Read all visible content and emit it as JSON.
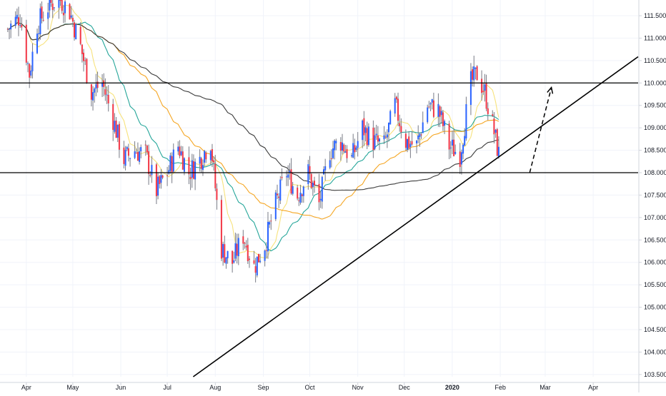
{
  "chart_data": {
    "type": "candlestick",
    "title": "",
    "xlabel": "",
    "ylabel": "",
    "x_range": [
      "2019-03-15",
      "2020-04-30"
    ],
    "ylim": [
      103.45,
      111.85
    ],
    "y_ticks": [
      "103.500",
      "104.000",
      "104.500",
      "105.000",
      "105.500",
      "106.000",
      "106.500",
      "107.000",
      "107.500",
      "108.000",
      "108.500",
      "109.000",
      "109.500",
      "110.000",
      "110.500",
      "111.000",
      "111.500"
    ],
    "x_ticks": [
      {
        "label": "Apr",
        "date": "2019-04-01",
        "bold": false
      },
      {
        "label": "May",
        "date": "2019-05-01",
        "bold": false
      },
      {
        "label": "Jun",
        "date": "2019-06-01",
        "bold": false
      },
      {
        "label": "Jul",
        "date": "2019-07-01",
        "bold": false
      },
      {
        "label": "Aug",
        "date": "2019-08-01",
        "bold": false
      },
      {
        "label": "Sep",
        "date": "2019-09-01",
        "bold": false
      },
      {
        "label": "Oct",
        "date": "2019-10-01",
        "bold": false
      },
      {
        "label": "Nov",
        "date": "2019-11-01",
        "bold": false
      },
      {
        "label": "Dec",
        "date": "2019-12-01",
        "bold": false
      },
      {
        "label": "2020",
        "date": "2020-01-01",
        "bold": true
      },
      {
        "label": "Feb",
        "date": "2020-02-01",
        "bold": false
      },
      {
        "label": "Mar",
        "date": "2020-03-01",
        "bold": false
      },
      {
        "label": "Apr",
        "date": "2020-04-01",
        "bold": false
      }
    ],
    "colors": {
      "up": "#2962ff",
      "down": "#f23645",
      "wick": "#787b86",
      "sma_fast": "#f7e27c",
      "sma_mid": "#26a69a",
      "sma_slow": "#f5a623",
      "sma_long": "#3c3c3c",
      "drawing": "#000000",
      "grid": "#f0f3fa",
      "axis_text": "#131722"
    },
    "anchors": [
      [
        "2019-03-20",
        111.2
      ],
      [
        "2019-03-28",
        111.5
      ],
      [
        "2019-04-03",
        110.2
      ],
      [
        "2019-04-08",
        111.3
      ],
      [
        "2019-04-15",
        111.7
      ],
      [
        "2019-04-22",
        111.9
      ],
      [
        "2019-04-29",
        111.6
      ],
      [
        "2019-05-06",
        110.8
      ],
      [
        "2019-05-13",
        109.8
      ],
      [
        "2019-05-20",
        110.0
      ],
      [
        "2019-05-27",
        109.2
      ],
      [
        "2019-06-03",
        108.3
      ],
      [
        "2019-06-10",
        108.5
      ],
      [
        "2019-06-17",
        108.4
      ],
      [
        "2019-06-24",
        107.6
      ],
      [
        "2019-07-01",
        108.0
      ],
      [
        "2019-07-08",
        108.6
      ],
      [
        "2019-07-15",
        108.0
      ],
      [
        "2019-07-22",
        108.3
      ],
      [
        "2019-07-29",
        108.7
      ],
      [
        "2019-08-05",
        106.3
      ],
      [
        "2019-08-12",
        106.0
      ],
      [
        "2019-08-19",
        106.6
      ],
      [
        "2019-08-26",
        105.9
      ],
      [
        "2019-09-02",
        106.4
      ],
      [
        "2019-09-09",
        107.3
      ],
      [
        "2019-09-16",
        108.0
      ],
      [
        "2019-09-23",
        107.5
      ],
      [
        "2019-09-30",
        108.0
      ],
      [
        "2019-10-07",
        107.3
      ],
      [
        "2019-10-14",
        108.5
      ],
      [
        "2019-10-21",
        108.7
      ],
      [
        "2019-10-28",
        108.3
      ],
      [
        "2019-11-04",
        109.0
      ],
      [
        "2019-11-11",
        108.7
      ],
      [
        "2019-11-18",
        108.6
      ],
      [
        "2019-11-25",
        109.5
      ],
      [
        "2019-12-02",
        108.7
      ],
      [
        "2019-12-09",
        108.6
      ],
      [
        "2019-12-16",
        109.5
      ],
      [
        "2019-12-23",
        109.4
      ],
      [
        "2019-12-30",
        108.6
      ],
      [
        "2020-01-06",
        108.4
      ],
      [
        "2020-01-13",
        110.0
      ],
      [
        "2020-01-17",
        110.2
      ],
      [
        "2020-01-22",
        109.8
      ],
      [
        "2020-01-28",
        108.9
      ],
      [
        "2020-01-31",
        108.4
      ]
    ],
    "horizontal_levels": [
      110.0,
      108.0
    ],
    "trendline": {
      "from": [
        "2019-08-27",
        104.45
      ],
      "to": [
        "2020-01-31",
        108.35
      ]
    },
    "projection_arrow": {
      "from": [
        "2020-02-20",
        108.0
      ],
      "to": [
        "2020-03-05",
        109.9
      ]
    },
    "price_range_min": 104.45,
    "price_range_max": 112.1
  }
}
